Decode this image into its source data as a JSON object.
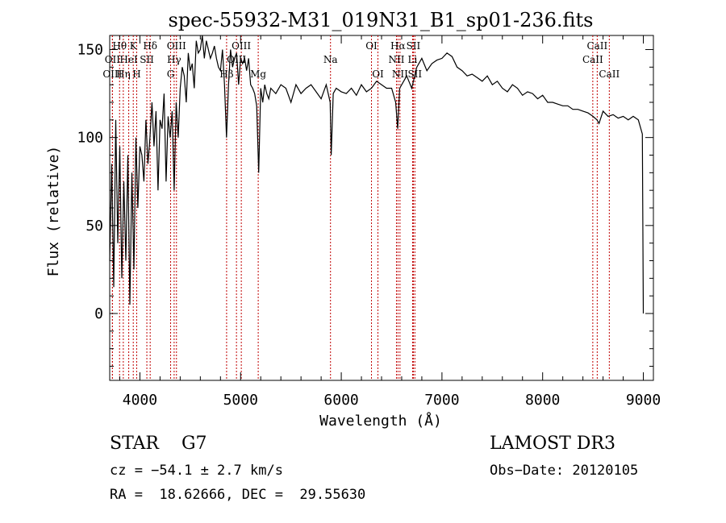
{
  "chart_data": {
    "type": "line",
    "title": "spec-55932-M31_019N31_B1_sp01-236.fits",
    "xlabel": "Wavelength (Å)",
    "ylabel": "Flux (relative)",
    "xlim": [
      3700,
      9100
    ],
    "ylim": [
      -38,
      158
    ],
    "x_ticks": [
      4000,
      5000,
      6000,
      7000,
      8000,
      9000
    ],
    "y_ticks": [
      0,
      50,
      100,
      150
    ],
    "grid": false,
    "series": [
      {
        "name": "spectrum",
        "x": [
          3700,
          3720,
          3740,
          3760,
          3780,
          3800,
          3820,
          3840,
          3860,
          3880,
          3900,
          3920,
          3940,
          3960,
          3980,
          4000,
          4020,
          4040,
          4060,
          4080,
          4100,
          4120,
          4140,
          4160,
          4180,
          4200,
          4220,
          4240,
          4260,
          4280,
          4300,
          4320,
          4340,
          4360,
          4380,
          4400,
          4420,
          4440,
          4460,
          4480,
          4500,
          4520,
          4540,
          4560,
          4580,
          4600,
          4620,
          4640,
          4660,
          4680,
          4700,
          4720,
          4740,
          4760,
          4780,
          4800,
          4820,
          4840,
          4860,
          4880,
          4900,
          4920,
          4940,
          4960,
          4980,
          5000,
          5020,
          5040,
          5060,
          5080,
          5100,
          5120,
          5140,
          5160,
          5180,
          5200,
          5220,
          5240,
          5260,
          5280,
          5300,
          5350,
          5400,
          5450,
          5500,
          5550,
          5600,
          5650,
          5700,
          5750,
          5800,
          5850,
          5890,
          5900,
          5920,
          5950,
          6000,
          6050,
          6100,
          6150,
          6200,
          6250,
          6300,
          6350,
          6400,
          6450,
          6500,
          6540,
          6560,
          6580,
          6600,
          6650,
          6700,
          6750,
          6800,
          6850,
          6900,
          6950,
          7000,
          7050,
          7100,
          7150,
          7200,
          7250,
          7300,
          7350,
          7400,
          7450,
          7500,
          7550,
          7600,
          7650,
          7700,
          7750,
          7800,
          7850,
          7900,
          7950,
          8000,
          8050,
          8100,
          8150,
          8200,
          8250,
          8300,
          8350,
          8400,
          8450,
          8500,
          8540,
          8560,
          8600,
          8650,
          8700,
          8750,
          8800,
          8850,
          8900,
          8950,
          8990,
          9000
        ],
        "values": [
          30,
          85,
          15,
          110,
          40,
          95,
          20,
          75,
          30,
          90,
          5,
          80,
          25,
          100,
          60,
          95,
          90,
          75,
          110,
          85,
          100,
          120,
          95,
          115,
          70,
          110,
          105,
          125,
          75,
          112,
          100,
          115,
          70,
          120,
          100,
          128,
          140,
          135,
          120,
          148,
          138,
          142,
          128,
          155,
          148,
          150,
          160,
          145,
          155,
          150,
          145,
          148,
          152,
          145,
          140,
          138,
          150,
          130,
          100,
          130,
          150,
          140,
          145,
          148,
          130,
          145,
          142,
          145,
          138,
          145,
          130,
          128,
          125,
          118,
          80,
          128,
          120,
          130,
          125,
          122,
          128,
          125,
          130,
          128,
          120,
          130,
          125,
          128,
          130,
          126,
          122,
          130,
          120,
          90,
          125,
          128,
          126,
          125,
          128,
          124,
          130,
          126,
          128,
          132,
          130,
          128,
          128,
          120,
          105,
          128,
          130,
          135,
          128,
          140,
          145,
          138,
          142,
          144,
          145,
          148,
          146,
          140,
          138,
          135,
          136,
          134,
          132,
          135,
          130,
          132,
          128,
          126,
          130,
          128,
          124,
          126,
          125,
          122,
          124,
          120,
          120,
          119,
          118,
          118,
          116,
          116,
          115,
          114,
          112,
          110,
          108,
          115,
          112,
          113,
          111,
          112,
          110,
          112,
          110,
          102,
          0
        ]
      }
    ],
    "lines": [
      {
        "name": "Hθ",
        "x": 3798,
        "row": 1
      },
      {
        "name": "OII",
        "x": 3727,
        "row": 2
      },
      {
        "name": "OIII",
        "x": 3727,
        "row": 3
      },
      {
        "name": "K",
        "x": 3934,
        "row": 1
      },
      {
        "name": "HeI",
        "x": 3889,
        "row": 2
      },
      {
        "name": "Hη",
        "x": 3835,
        "row": 3
      },
      {
        "name": "H",
        "x": 3968,
        "row": 3
      },
      {
        "name": "Hδ",
        "x": 4102,
        "row": 1
      },
      {
        "name": "SII",
        "x": 4069,
        "row": 2
      },
      {
        "name": "OIII",
        "x": 4363,
        "row": 1
      },
      {
        "name": "Hγ",
        "x": 4340,
        "row": 2
      },
      {
        "name": "G",
        "x": 4305,
        "row": 3
      },
      {
        "name": "OIII",
        "x": 5007,
        "row": 1
      },
      {
        "name": "OIII",
        "x": 4959,
        "row": 2
      },
      {
        "name": "Hβ",
        "x": 4861,
        "row": 3
      },
      {
        "name": "Mg",
        "x": 5175,
        "row": 3
      },
      {
        "name": "Na",
        "x": 5893,
        "row": 2
      },
      {
        "name": "OI",
        "x": 6300,
        "row": 1
      },
      {
        "name": "OI",
        "x": 6364,
        "row": 3
      },
      {
        "name": "Hα",
        "x": 6563,
        "row": 1
      },
      {
        "name": "NII",
        "x": 6548,
        "row": 2
      },
      {
        "name": "NII",
        "x": 6583,
        "row": 3
      },
      {
        "name": "SII",
        "x": 6716,
        "row": 1
      },
      {
        "name": "Li",
        "x": 6708,
        "row": 2
      },
      {
        "name": "SII",
        "x": 6731,
        "row": 3
      },
      {
        "name": "CaII",
        "x": 8542,
        "row": 1
      },
      {
        "name": "CaII",
        "x": 8498,
        "row": 2
      },
      {
        "name": "CaII",
        "x": 8662,
        "row": 3
      }
    ]
  },
  "footer": {
    "classification": "STAR    G7",
    "survey": "LAMOST DR3",
    "redshift": "cz = −54.1 ± 2.7 km/s",
    "obs_date": "Obs−Date: 20120105",
    "coords": "RA =  18.62666, DEC =  29.55630"
  },
  "colors": {
    "spectrum": "#000000",
    "line_markers": "#c00000",
    "axes": "#000000"
  }
}
